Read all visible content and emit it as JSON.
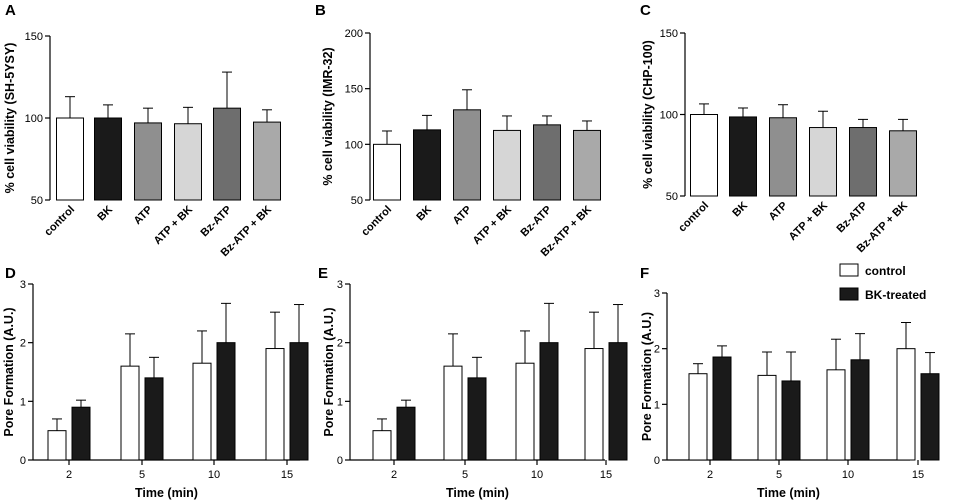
{
  "chart_data": [
    {
      "panel": "A",
      "type": "bar",
      "ylabel": "% cell viability (SH-5YSY)",
      "ylim": [
        50,
        150
      ],
      "yticks": [
        50,
        100,
        150
      ],
      "categories": [
        "control",
        "BK",
        "ATP",
        "ATP + BK",
        "Bz-ATP",
        "Bz-ATP + BK"
      ],
      "values": [
        100,
        100,
        97,
        96.5,
        106,
        97.5
      ],
      "errors": [
        13,
        8,
        9,
        10,
        22,
        7.5
      ],
      "colors": [
        "#ffffff",
        "#1a1a1a",
        "#8f8f8f",
        "#d6d6d6",
        "#6e6e6e",
        "#a9a9a9"
      ]
    },
    {
      "panel": "B",
      "type": "bar",
      "ylabel": "% cell viability (IMR-32)",
      "ylim": [
        50,
        200
      ],
      "yticks": [
        50,
        100,
        150,
        200
      ],
      "categories": [
        "control",
        "BK",
        "ATP",
        "ATP + BK",
        "Bz-ATP",
        "Bz-ATP + BK"
      ],
      "values": [
        100,
        113,
        131,
        112.5,
        117.5,
        112.5
      ],
      "errors": [
        12,
        13,
        18,
        13,
        8,
        8.5
      ],
      "colors": [
        "#ffffff",
        "#1a1a1a",
        "#8f8f8f",
        "#d6d6d6",
        "#6e6e6e",
        "#a9a9a9"
      ]
    },
    {
      "panel": "C",
      "type": "bar",
      "ylabel": "% cell viability (CHP-100)",
      "ylim": [
        50,
        150
      ],
      "yticks": [
        50,
        100,
        150
      ],
      "categories": [
        "control",
        "BK",
        "ATP",
        "ATP + BK",
        "Bz-ATP",
        "Bz-ATP + BK"
      ],
      "values": [
        100,
        98.5,
        98,
        92,
        92,
        90
      ],
      "errors": [
        6.5,
        5.5,
        8,
        10,
        5,
        7
      ],
      "colors": [
        "#ffffff",
        "#1a1a1a",
        "#8f8f8f",
        "#d6d6d6",
        "#6e6e6e",
        "#a9a9a9"
      ]
    },
    {
      "panel": "D",
      "type": "bar",
      "ylabel": "Pore Formation (A.U.)",
      "xlabel": "Time (min)",
      "ylim": [
        0,
        3
      ],
      "yticks": [
        0,
        1,
        2,
        3
      ],
      "categories": [
        "2",
        "5",
        "10",
        "15"
      ],
      "series": [
        {
          "name": "control",
          "values": [
            0.5,
            1.6,
            1.65,
            1.9
          ],
          "errors": [
            0.2,
            0.55,
            0.55,
            0.62
          ],
          "color": "#ffffff"
        },
        {
          "name": "BK-treated",
          "values": [
            0.9,
            1.4,
            2.0,
            2.0
          ],
          "errors": [
            0.12,
            0.35,
            0.67,
            0.65
          ],
          "color": "#1a1a1a"
        }
      ]
    },
    {
      "panel": "E",
      "type": "bar",
      "ylabel": "Pore Formation (A.U.)",
      "xlabel": "Time (min)",
      "ylim": [
        0,
        3
      ],
      "yticks": [
        0,
        1,
        2,
        3
      ],
      "categories": [
        "2",
        "5",
        "10",
        "15"
      ],
      "series": [
        {
          "name": "control",
          "values": [
            0.5,
            1.6,
            1.65,
            1.9
          ],
          "errors": [
            0.2,
            0.55,
            0.55,
            0.62
          ],
          "color": "#ffffff"
        },
        {
          "name": "BK-treated",
          "values": [
            0.9,
            1.4,
            2.0,
            2.0
          ],
          "errors": [
            0.12,
            0.35,
            0.67,
            0.65
          ],
          "color": "#1a1a1a"
        }
      ]
    },
    {
      "panel": "F",
      "type": "bar",
      "ylabel": "Pore Formation (A.U.)",
      "xlabel": "Time (min)",
      "ylim": [
        0,
        3
      ],
      "yticks": [
        0,
        1,
        2,
        3
      ],
      "categories": [
        "2",
        "5",
        "10",
        "15"
      ],
      "series": [
        {
          "name": "control",
          "values": [
            1.55,
            1.52,
            1.62,
            2.0
          ],
          "errors": [
            0.18,
            0.42,
            0.55,
            0.47
          ],
          "color": "#ffffff"
        },
        {
          "name": "BK-treated",
          "values": [
            1.85,
            1.42,
            1.8,
            1.55
          ],
          "errors": [
            0.2,
            0.52,
            0.47,
            0.38
          ],
          "color": "#1a1a1a"
        }
      ],
      "legend": {
        "position": "top-right",
        "entries": [
          "control",
          "BK-treated"
        ]
      }
    }
  ]
}
